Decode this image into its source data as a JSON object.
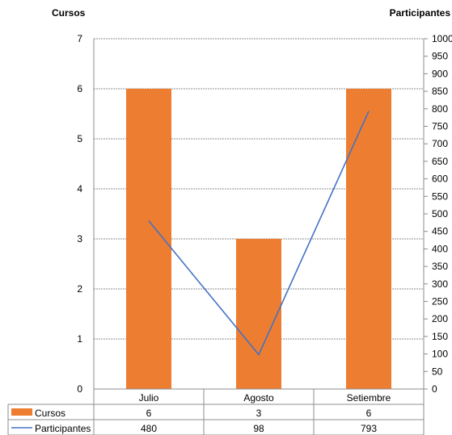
{
  "chart_data": {
    "type": "bar-line-combo",
    "categories": [
      "Julio",
      "Agosto",
      "Setiembre"
    ],
    "series": [
      {
        "name": "Cursos",
        "type": "bar",
        "axis": "left",
        "values": [
          6,
          3,
          6
        ],
        "color": "#ED7D31"
      },
      {
        "name": "Participantes",
        "type": "line",
        "axis": "right",
        "values": [
          480,
          98,
          793
        ],
        "color": "#4472C4"
      }
    ],
    "y_left": {
      "label": "Cursos",
      "ylim": [
        0,
        7
      ],
      "ticks": [
        0,
        1,
        2,
        3,
        4,
        5,
        6,
        7
      ]
    },
    "y_right": {
      "label": "Participantes",
      "ylim": [
        0,
        1000
      ],
      "ticks": [
        0,
        50,
        100,
        150,
        200,
        250,
        300,
        350,
        400,
        450,
        500,
        550,
        600,
        650,
        700,
        750,
        800,
        850,
        900,
        950,
        1000
      ]
    },
    "grid": true,
    "legend": "data-table"
  }
}
